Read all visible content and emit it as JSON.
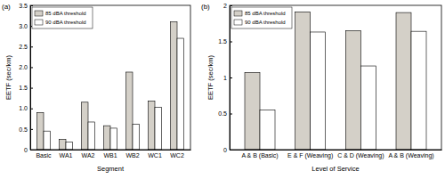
{
  "chart_data": [
    {
      "type": "bar",
      "title": "(a)",
      "x_label": "Segment",
      "y_label": "EETF (sec/km)",
      "categories": [
        "Basic",
        "WA1",
        "WA2",
        "WB1",
        "WB2",
        "WC1",
        "WC2"
      ],
      "series": [
        {
          "name": "85 dBA threshold",
          "color": "#d4d0c8",
          "values": [
            0.9,
            0.25,
            1.15,
            0.58,
            1.88,
            1.18,
            3.1
          ]
        },
        {
          "name": "90 dBA threshold",
          "color": "#ffffff",
          "values": [
            0.45,
            0.18,
            0.67,
            0.52,
            0.62,
            1.03,
            2.7
          ]
        }
      ],
      "ylim": [
        0,
        3.5
      ],
      "yticks": [
        0,
        0.5,
        {
          "value": 1,
          "label": "1.0"
        },
        1.5,
        {
          "value": 2,
          "label": "2.0"
        },
        2.5,
        {
          "value": 3,
          "label": "3.0"
        },
        3.5
      ],
      "legend": "upper left"
    },
    {
      "type": "bar",
      "title": "(b)",
      "x_label": "Level of Service",
      "y_label": "EETF (sec/km)",
      "categories": [
        "A & B (Basic)",
        "E & F (Weaving)",
        "C & D (Weaving)",
        "A & B (Weaving)"
      ],
      "series": [
        {
          "name": "85 dBA threshold",
          "color": "#d4d0c8",
          "values": [
            1.07,
            1.91,
            1.65,
            1.9
          ]
        },
        {
          "name": "90 dBA threshold",
          "color": "#ffffff",
          "values": [
            0.55,
            1.63,
            1.16,
            1.64
          ]
        }
      ],
      "ylim": [
        0,
        2
      ],
      "yticks": [
        0,
        0.5,
        1,
        1.5,
        2
      ],
      "legend": "upper left"
    }
  ]
}
